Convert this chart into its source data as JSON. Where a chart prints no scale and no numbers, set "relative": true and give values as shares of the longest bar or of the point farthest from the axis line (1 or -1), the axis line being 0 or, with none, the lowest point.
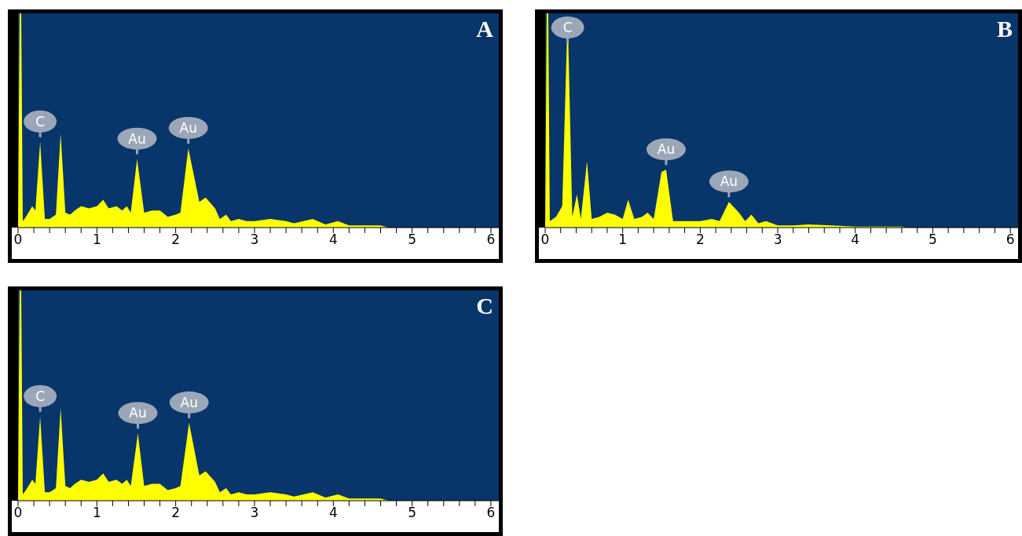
{
  "chart_data": [
    {
      "type": "area",
      "title": "A",
      "relative": true,
      "xlim": [
        0,
        6.1
      ],
      "xticks": [
        0,
        {
          "value": 0.2,
          "label": null
        },
        {
          "value": 0.4,
          "label": null
        },
        {
          "value": 0.6,
          "label": null
        },
        {
          "value": 0.8,
          "label": null
        },
        1,
        {
          "value": 1.2,
          "label": null
        },
        {
          "value": 1.4,
          "label": null
        },
        {
          "value": 1.6,
          "label": null
        },
        {
          "value": 1.8,
          "label": null
        },
        2,
        {
          "value": 2.2,
          "label": null
        },
        {
          "value": 2.4,
          "label": null
        },
        {
          "value": 2.6,
          "label": null
        },
        {
          "value": 2.8,
          "label": null
        },
        3,
        {
          "value": 3.2,
          "label": null
        },
        {
          "value": 3.4,
          "label": null
        },
        {
          "value": 3.6,
          "label": null
        },
        {
          "value": 3.8,
          "label": null
        },
        4,
        {
          "value": 4.2,
          "label": null
        },
        {
          "value": 4.4,
          "label": null
        },
        {
          "value": 4.6,
          "label": null
        },
        {
          "value": 4.8,
          "label": null
        },
        5,
        {
          "value": 5.2,
          "label": null
        },
        {
          "value": 5.4,
          "label": null
        },
        {
          "value": 5.6,
          "label": null
        },
        {
          "value": 5.8,
          "label": null
        },
        6
      ],
      "series": [
        {
          "color": "#ffff00",
          "x": [
            0,
            0.02,
            0.04,
            0.06,
            0.1,
            0.18,
            0.22,
            0.28,
            0.34,
            0.4,
            0.48,
            0.54,
            0.6,
            0.66,
            0.72,
            0.8,
            0.9,
            1.0,
            1.08,
            1.15,
            1.25,
            1.32,
            1.38,
            1.43,
            1.51,
            1.6,
            1.7,
            1.8,
            1.9,
            2.0,
            2.06,
            2.16,
            2.3,
            2.38,
            2.5,
            2.56,
            2.64,
            2.7,
            2.8,
            2.9,
            3.0,
            3.2,
            3.4,
            3.5,
            3.74,
            3.9,
            4.06,
            4.2,
            4.4,
            4.6,
            4.7,
            5,
            6.1
          ],
          "values": [
            0,
            1,
            1,
            0.03,
            0.05,
            0.1,
            0.08,
            0.4,
            0.04,
            0.04,
            0.06,
            0.44,
            0.07,
            0.06,
            0.08,
            0.1,
            0.09,
            0.1,
            0.13,
            0.09,
            0.1,
            0.08,
            0.1,
            0.07,
            0.32,
            0.07,
            0.08,
            0.08,
            0.05,
            0.06,
            0.07,
            0.37,
            0.12,
            0.14,
            0.09,
            0.04,
            0.06,
            0.03,
            0.04,
            0.03,
            0.03,
            0.04,
            0.03,
            0.02,
            0.04,
            0.015,
            0.03,
            0.01,
            0.01,
            0.01,
            0,
            0,
            0
          ]
        }
      ],
      "annotations": [
        {
          "text": "C",
          "x": 0.28,
          "y": 0.4
        },
        {
          "text": "Au",
          "x": 1.51,
          "y": 0.32
        },
        {
          "text": "Au",
          "x": 2.16,
          "y": 0.37
        }
      ]
    },
    {
      "type": "area",
      "title": "B",
      "relative": true,
      "xlim": [
        0,
        6.1
      ],
      "xticks": [
        0,
        {
          "value": 0.2,
          "label": null
        },
        {
          "value": 0.4,
          "label": null
        },
        {
          "value": 0.6,
          "label": null
        },
        {
          "value": 0.8,
          "label": null
        },
        1,
        {
          "value": 1.2,
          "label": null
        },
        {
          "value": 1.4,
          "label": null
        },
        {
          "value": 1.6,
          "label": null
        },
        {
          "value": 1.8,
          "label": null
        },
        2,
        {
          "value": 2.2,
          "label": null
        },
        {
          "value": 2.4,
          "label": null
        },
        {
          "value": 2.6,
          "label": null
        },
        {
          "value": 2.8,
          "label": null
        },
        3,
        {
          "value": 3.2,
          "label": null
        },
        {
          "value": 3.4,
          "label": null
        },
        {
          "value": 3.6,
          "label": null
        },
        {
          "value": 3.8,
          "label": null
        },
        4,
        {
          "value": 4.2,
          "label": null
        },
        {
          "value": 4.4,
          "label": null
        },
        {
          "value": 4.6,
          "label": null
        },
        {
          "value": 4.8,
          "label": null
        },
        5,
        {
          "value": 5.2,
          "label": null
        },
        {
          "value": 5.4,
          "label": null
        },
        {
          "value": 5.6,
          "label": null
        },
        {
          "value": 5.8,
          "label": null
        },
        6
      ],
      "series": [
        {
          "color": "#ffff00",
          "x": [
            0,
            0.02,
            0.04,
            0.06,
            0.14,
            0.22,
            0.29,
            0.35,
            0.41,
            0.46,
            0.54,
            0.6,
            0.7,
            0.8,
            0.9,
            1.0,
            1.07,
            1.15,
            1.25,
            1.32,
            1.4,
            1.5,
            1.56,
            1.65,
            1.8,
            2.0,
            2.15,
            2.25,
            2.37,
            2.5,
            2.58,
            2.66,
            2.75,
            2.85,
            3.0,
            3.2,
            3.4,
            3.7,
            4.0,
            4.6,
            4.65,
            6.1
          ],
          "values": [
            0,
            1,
            1,
            0.03,
            0.05,
            0.1,
            1,
            0.05,
            0.155,
            0.04,
            0.31,
            0.04,
            0.05,
            0.07,
            0.06,
            0.04,
            0.13,
            0.04,
            0.05,
            0.07,
            0.04,
            0.26,
            0.27,
            0.03,
            0.03,
            0.03,
            0.04,
            0.03,
            0.12,
            0.07,
            0.03,
            0.06,
            0.02,
            0.03,
            0.01,
            0.01,
            0.015,
            0.01,
            0.005,
            0.005,
            0,
            0
          ]
        }
      ],
      "annotations": [
        {
          "text": "C",
          "x": 0.29,
          "y": 1
        },
        {
          "text": "Au",
          "x": 1.56,
          "y": 0.27
        },
        {
          "text": "Au",
          "x": 2.37,
          "y": 0.12
        }
      ]
    },
    {
      "type": "area",
      "title": "C",
      "relative": true,
      "xlim": [
        0,
        6.1
      ],
      "xticks": [
        0,
        {
          "value": 0.2,
          "label": null
        },
        {
          "value": 0.4,
          "label": null
        },
        {
          "value": 0.6,
          "label": null
        },
        {
          "value": 0.8,
          "label": null
        },
        1,
        {
          "value": 1.2,
          "label": null
        },
        {
          "value": 1.4,
          "label": null
        },
        {
          "value": 1.6,
          "label": null
        },
        {
          "value": 1.8,
          "label": null
        },
        2,
        {
          "value": 2.2,
          "label": null
        },
        {
          "value": 2.4,
          "label": null
        },
        {
          "value": 2.6,
          "label": null
        },
        {
          "value": 2.8,
          "label": null
        },
        3,
        {
          "value": 3.2,
          "label": null
        },
        {
          "value": 3.4,
          "label": null
        },
        {
          "value": 3.6,
          "label": null
        },
        {
          "value": 3.8,
          "label": null
        },
        4,
        {
          "value": 4.2,
          "label": null
        },
        {
          "value": 4.4,
          "label": null
        },
        {
          "value": 4.6,
          "label": null
        },
        {
          "value": 4.8,
          "label": null
        },
        5,
        {
          "value": 5.2,
          "label": null
        },
        {
          "value": 5.4,
          "label": null
        },
        {
          "value": 5.6,
          "label": null
        },
        {
          "value": 5.8,
          "label": null
        },
        6
      ],
      "series": [
        {
          "color": "#ffff00",
          "x": [
            0,
            0.02,
            0.04,
            0.06,
            0.1,
            0.18,
            0.22,
            0.28,
            0.34,
            0.4,
            0.48,
            0.54,
            0.6,
            0.66,
            0.72,
            0.8,
            0.9,
            1.0,
            1.08,
            1.15,
            1.25,
            1.32,
            1.38,
            1.43,
            1.52,
            1.6,
            1.7,
            1.8,
            1.9,
            2.0,
            2.06,
            2.17,
            2.3,
            2.38,
            2.5,
            2.56,
            2.64,
            2.7,
            2.8,
            2.9,
            3.0,
            3.2,
            3.4,
            3.5,
            3.74,
            3.9,
            4.06,
            4.2,
            4.4,
            4.6,
            4.7,
            5,
            6.1
          ],
          "values": [
            0,
            1,
            1,
            0.03,
            0.05,
            0.1,
            0.08,
            0.4,
            0.04,
            0.04,
            0.06,
            0.44,
            0.07,
            0.06,
            0.08,
            0.1,
            0.09,
            0.1,
            0.13,
            0.09,
            0.1,
            0.08,
            0.1,
            0.07,
            0.32,
            0.07,
            0.08,
            0.08,
            0.05,
            0.06,
            0.07,
            0.37,
            0.12,
            0.14,
            0.09,
            0.04,
            0.06,
            0.03,
            0.04,
            0.03,
            0.03,
            0.04,
            0.03,
            0.02,
            0.04,
            0.015,
            0.03,
            0.01,
            0.01,
            0.01,
            0,
            0,
            0
          ]
        }
      ],
      "annotations": [
        {
          "text": "C",
          "x": 0.28,
          "y": 0.4
        },
        {
          "text": "Au",
          "x": 1.52,
          "y": 0.32
        },
        {
          "text": "Au",
          "x": 2.17,
          "y": 0.37
        }
      ]
    }
  ]
}
